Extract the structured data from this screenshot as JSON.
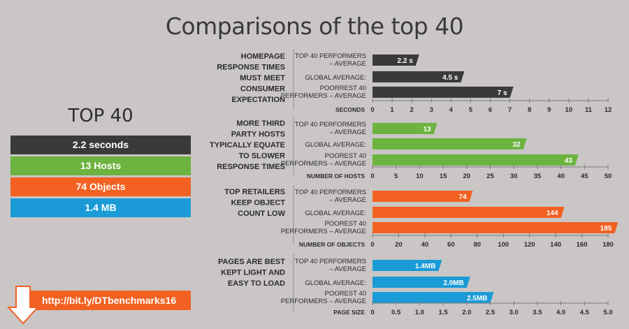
{
  "title": "Comparisons of the top 40",
  "summary": {
    "heading": "TOP 40",
    "items": [
      {
        "label": "2.2 seconds",
        "color": "#3a3a3a"
      },
      {
        "label": "13 Hosts",
        "color": "#6db33f"
      },
      {
        "label": "74 Objects",
        "color": "#f26122"
      },
      {
        "label": "1.4 MB",
        "color": "#1a9bd7"
      }
    ],
    "link": "http://bit.ly/DTbenchmarks16",
    "link_icon": "down-arrow-icon"
  },
  "chart_data": [
    {
      "type": "bar",
      "orientation": "horizontal",
      "title_lines": [
        "HOMEPAGE",
        "RESPONSE TIMES",
        "MUST MEET",
        "CONSUMER",
        "EXPECTATION"
      ],
      "categories": [
        [
          "TOP 40 PERFORMERS",
          "– AVERAGE"
        ],
        [
          "GLOBAL AVERAGE:"
        ],
        [
          "POORREST 40",
          "PERFORMERS – AVERAGE"
        ]
      ],
      "values": [
        2.2,
        4.5,
        7
      ],
      "value_labels": [
        "2.2 s",
        "4.5 s",
        "7 s"
      ],
      "xlabel": "SECONDS",
      "ticks": [
        "0",
        "1",
        "2",
        "3",
        "4",
        "5",
        "6",
        "7",
        "8",
        "9",
        "10",
        "11",
        "12"
      ],
      "xlim": [
        0,
        12
      ],
      "color": "#3a3a3a"
    },
    {
      "type": "bar",
      "orientation": "horizontal",
      "title_lines": [
        "MORE THIRD",
        "PARTY HOSTS",
        "TYPICALLY EQUATE",
        "TO SLOWER",
        "RESPONSE TIMES"
      ],
      "categories": [
        [
          "TOP 40 PERFORMERS",
          "– AVERAGE"
        ],
        [
          "GLOBAL AVERAGE:"
        ],
        [
          "POOREST 40",
          "PERFORMERS – AVERAGE"
        ]
      ],
      "values": [
        13,
        32,
        43
      ],
      "value_labels": [
        "13",
        "32",
        "43"
      ],
      "xlabel": "NUMBER OF HOSTS",
      "ticks": [
        "0",
        "5",
        "10",
        "15",
        "20",
        "25",
        "30",
        "35",
        "40",
        "45",
        "50"
      ],
      "xlim": [
        0,
        50
      ],
      "color": "#6db33f"
    },
    {
      "type": "bar",
      "orientation": "horizontal",
      "title_lines": [
        "TOP RETAILERS",
        "KEEP OBJECT",
        "COUNT LOW"
      ],
      "categories": [
        [
          "TOP 40 PERFORMERS",
          "– AVERAGE"
        ],
        [
          "GLOBAL AVERAGE:"
        ],
        [
          "POOREST 40",
          "PERFORMERS – AVERAGE"
        ]
      ],
      "values": [
        74,
        144,
        185
      ],
      "value_labels": [
        "74",
        "144",
        "185"
      ],
      "xlabel": "NUMBER OF OBJECTS",
      "ticks": [
        "0",
        "20",
        "40",
        "60",
        "80",
        "100",
        "120",
        "140",
        "160",
        "180"
      ],
      "xlim": [
        0,
        180
      ],
      "color": "#f26122"
    },
    {
      "type": "bar",
      "orientation": "horizontal",
      "title_lines": [
        "PAGES ARE BEST",
        "KEPT LIGHT AND",
        "EASY TO LOAD"
      ],
      "categories": [
        [
          "TOP 40 PERFORMERS",
          "– AVERAGE"
        ],
        [
          "GLOBAL AVERAGE:"
        ],
        [
          "POOREST 40",
          "PERFORMERS – AVERAGE"
        ]
      ],
      "values": [
        1.4,
        2.0,
        2.5
      ],
      "value_labels": [
        "1.4MB",
        "2.0MB",
        "2.5MB"
      ],
      "xlabel": "PAGE SIZE",
      "ticks": [
        "0",
        "0.5",
        "1.0",
        "1.5",
        "2.0",
        "2.5",
        "3.0",
        "3.5",
        "4.0",
        "4.5",
        "5.0"
      ],
      "xlim": [
        0,
        5
      ],
      "color": "#1a9bd7"
    }
  ]
}
